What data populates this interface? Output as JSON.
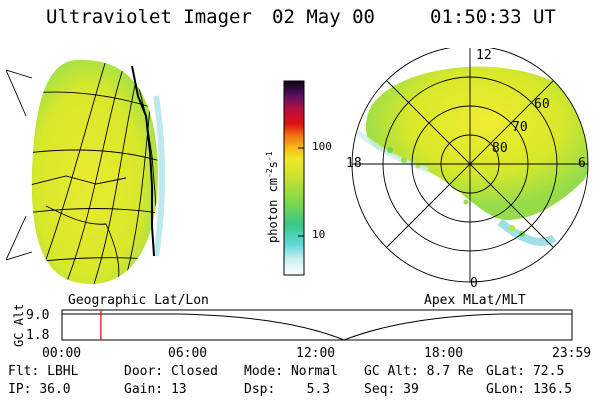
{
  "header": {
    "instrument": "Ultraviolet Imager",
    "date": "02 May 00",
    "time": "01:50:33 UT"
  },
  "colorbar": {
    "unit_label": "photon cm",
    "unit_exp1": "-2",
    "unit_mid": "s",
    "unit_exp2": "-1",
    "ticks": [
      "100",
      "10"
    ]
  },
  "polar_plot": {
    "mlt_labels": {
      "top": "12",
      "left": "18",
      "right": "6",
      "bottom": "0"
    },
    "lat_labels": [
      "60",
      "70",
      "80"
    ]
  },
  "panel_titles": {
    "left": "Geographic Lat/Lon",
    "right": "Apex MLat/MLT"
  },
  "timeline": {
    "axis_label": "GC Alt",
    "y_ticks": [
      "9.0",
      "1.8"
    ],
    "x_ticks": [
      "00:00",
      "06:00",
      "12:00",
      "18:00",
      "23:59"
    ],
    "current_time_fraction": 0.0763
  },
  "status": {
    "filter_label": "Flt:",
    "filter_value": "LBHL",
    "ip_label": "IP:",
    "ip_value": "36.0",
    "door_label": "Door:",
    "door_value": "Closed",
    "gain_label": "Gain:",
    "gain_value": "13",
    "mode_label": "Mode:",
    "mode_value": "Normal",
    "dsp_label": "Dsp:",
    "dsp_value": "5.3",
    "gcalt_label": "GC Alt:",
    "gcalt_value": "8.7 Re",
    "seq_label": "Seq:",
    "seq_value": "39",
    "glat_label": "GLat:",
    "glat_value": "72.5",
    "glon_label": "GLon:",
    "glon_value": "136.5"
  },
  "colors": {
    "background": "#ffffff",
    "foreground": "#000000",
    "time_marker": "#dd0000",
    "aurora_main": "#d8e82a",
    "aurora_edge": "#8fdc4a",
    "aurora_low": "#c8f0f0"
  }
}
